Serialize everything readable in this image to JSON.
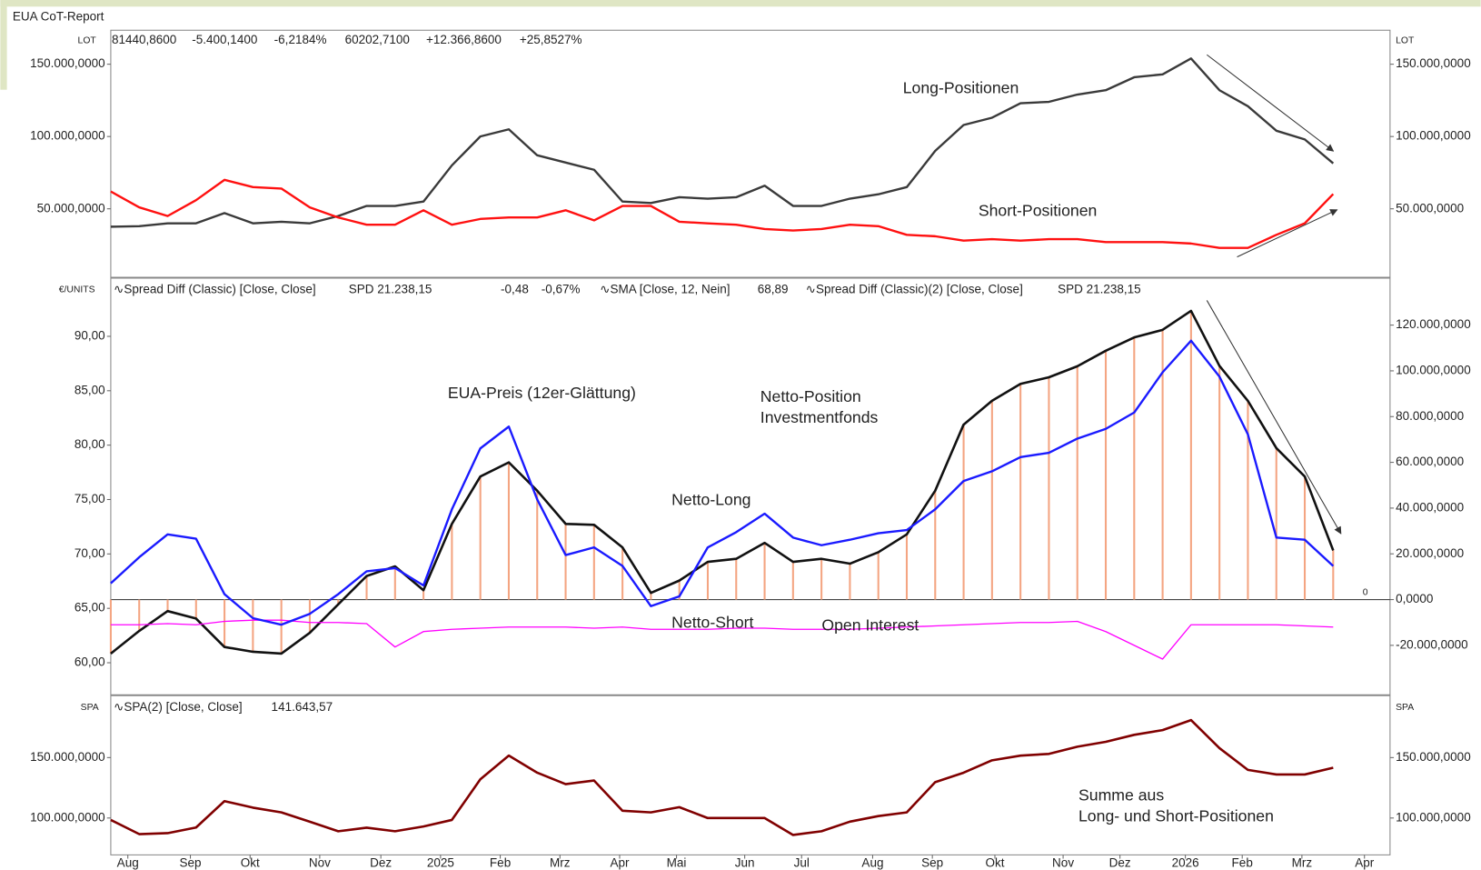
{
  "title": "EUA CoT-Report",
  "chart_data": [
    {
      "type": "line",
      "axis_label": "LOT",
      "header": [
        {
          "text": "81440,8600",
          "color": "#222222"
        },
        {
          "text": "-5.400,1400",
          "color": "#e02020"
        },
        {
          "text": "-6,2184%",
          "color": "#e02020"
        },
        {
          "text": "60202,7100",
          "color": "#e02020"
        },
        {
          "text": "+12.366,8600",
          "color": "#209020"
        },
        {
          "text": "+25,8527%",
          "color": "#209020"
        }
      ],
      "ylim": [
        3000,
        173500
      ],
      "yticks": [
        {
          "value": 50000,
          "label": "50.000,0000"
        },
        {
          "value": 100000,
          "label": "100.000,0000"
        },
        {
          "value": 150000,
          "label": "150.000,0000"
        }
      ],
      "series": [
        {
          "name": "Long-Positionen",
          "color": "#3a3a3a",
          "values": [
            37600,
            38000,
            40000,
            40000,
            47000,
            40000,
            41000,
            40000,
            45000,
            52000,
            52000,
            55000,
            80000,
            100000,
            105000,
            87000,
            82000,
            77000,
            55000,
            54000,
            58000,
            57000,
            58000,
            66000,
            52000,
            52000,
            57000,
            60000,
            65000,
            90000,
            108000,
            113000,
            123000,
            124000,
            129000,
            132000,
            141000,
            143000,
            154000,
            132000,
            121000,
            104000,
            98000,
            81441
          ]
        },
        {
          "name": "Short-Positionen",
          "color": "#ff1010",
          "values": [
            62000,
            51000,
            45000,
            56000,
            70000,
            65000,
            64000,
            51000,
            44000,
            39000,
            39000,
            49000,
            39000,
            43000,
            44000,
            44000,
            49000,
            42000,
            52000,
            52000,
            41000,
            40000,
            39000,
            36000,
            35000,
            36000,
            39000,
            38000,
            32000,
            31000,
            28000,
            29000,
            28000,
            29000,
            29000,
            27000,
            27000,
            27000,
            26000,
            23000,
            23000,
            32000,
            40000,
            60203
          ]
        }
      ]
    },
    {
      "type": "line",
      "axis_label": "€/UNITS",
      "header": [
        {
          "text": "∿Spread Diff (Classic)  [Close, Close]",
          "color": "#222222"
        },
        {
          "text": "SPD 21.238,15",
          "color": "#f4a070"
        },
        {
          "text": "-0,48",
          "color": "#e02020"
        },
        {
          "text": "-0,67%",
          "color": "#e02020"
        },
        {
          "text": "∿SMA  [Close, 12, Nein]",
          "color": "#222222"
        },
        {
          "text": "68,89",
          "color": "#1a1aff"
        },
        {
          "text": "∿Spread Diff (Classic)(2)  [Close, Close]",
          "color": "#222222"
        },
        {
          "text": "SPD 21.238,15",
          "color": "#222222"
        }
      ],
      "annotations": [
        "Netto-Position",
        "Investmentfonds",
        "Netto-Long",
        "Netto-Short",
        "0"
      ],
      "ylim": [
        57.1,
        95.3
      ],
      "yticks": [
        {
          "value": 60,
          "label": "60,00"
        },
        {
          "value": 65,
          "label": "65,00"
        },
        {
          "value": 70,
          "label": "70,00"
        },
        {
          "value": 75,
          "label": "75,00"
        },
        {
          "value": 80,
          "label": "80,00"
        },
        {
          "value": 85,
          "label": "85,00"
        },
        {
          "value": 90,
          "label": "90,00"
        }
      ],
      "y2lim": [
        -41400,
        140300
      ],
      "y2ticks": [
        {
          "value": -20000,
          "label": "-20.000,0000"
        },
        {
          "value": 0,
          "label": "0,0000"
        },
        {
          "value": 20000,
          "label": "20.000,0000"
        },
        {
          "value": 40000,
          "label": "40.000,0000"
        },
        {
          "value": 60000,
          "label": "60.000,0000"
        },
        {
          "value": 80000,
          "label": "80.000,0000"
        },
        {
          "value": 100000,
          "label": "100.000,0000"
        },
        {
          "value": 120000,
          "label": "120.000,0000"
        }
      ],
      "bar_color": "#f4a582",
      "series": [
        {
          "color": "#111111",
          "axis": "y2",
          "bars": true,
          "values": [
            -23600,
            -13700,
            -5000,
            -8300,
            -20700,
            -22800,
            -23600,
            -14500,
            -2100,
            10300,
            14500,
            4100,
            33100,
            53800,
            60000,
            47600,
            33100,
            32700,
            22800,
            2900,
            8300,
            16500,
            17800,
            24800,
            16500,
            17800,
            15700,
            20700,
            28500,
            47600,
            76500,
            86900,
            94300,
            97200,
            102000,
            108800,
            114600,
            117900,
            126200,
            102200,
            86900,
            66200,
            53800,
            21500
          ]
        },
        {
          "name": "Open Interest",
          "color": "#ff00ff",
          "axis": "y2",
          "values": [
            -11000,
            -11000,
            -10500,
            -11000,
            -9500,
            -9000,
            -9000,
            -10000,
            -10000,
            -10500,
            -20700,
            -14000,
            -13000,
            -12500,
            -12000,
            -12000,
            -12000,
            -12500,
            -12000,
            -13000,
            -13000,
            -13000,
            -12500,
            -12500,
            -13000,
            -13000,
            -13000,
            -12500,
            -12000,
            -11500,
            -11000,
            -10500,
            -10000,
            -10000,
            -9500,
            -14000,
            -20000,
            -26000,
            -11000,
            -11000,
            -11000,
            -11000,
            -11500,
            -12000
          ]
        },
        {
          "name": "EUA-Preis (12er-Glättung)",
          "color": "#1a1aff",
          "values": [
            67.3,
            69.7,
            71.8,
            71.4,
            66.3,
            64.1,
            63.5,
            64.5,
            66.3,
            68.4,
            68.7,
            67.1,
            74.1,
            79.7,
            81.7,
            75.0,
            69.9,
            70.6,
            68.9,
            65.2,
            66.1,
            70.6,
            72.0,
            73.7,
            71.5,
            70.8,
            71.3,
            71.9,
            72.2,
            74.1,
            76.7,
            77.6,
            78.9,
            79.3,
            80.6,
            81.5,
            83.0,
            86.7,
            89.6,
            86.3,
            81.0,
            71.5,
            71.3,
            68.89
          ]
        }
      ]
    },
    {
      "type": "line",
      "axis_label": "SPA",
      "header": [
        {
          "text": "∿SPA(2)  [Close, Close]",
          "color": "#222222"
        },
        {
          "text": "141.643,57",
          "color": "#8b1010"
        }
      ],
      "annotations": [
        "Summe aus",
        "Long- und Short-Positionen"
      ],
      "ylim": [
        69500,
        200000
      ],
      "yticks": [
        {
          "value": 100000,
          "label": "100.000,0000"
        },
        {
          "value": 150000,
          "label": "150.000,0000"
        }
      ],
      "xlim": [
        0,
        45
      ],
      "xticks": [
        {
          "value": 0.6,
          "label": "Aug"
        },
        {
          "value": 2.8,
          "label": "Sep"
        },
        {
          "value": 4.9,
          "label": "Okt"
        },
        {
          "value": 7.35,
          "label": "Nov"
        },
        {
          "value": 9.5,
          "label": "Dez"
        },
        {
          "value": 11.6,
          "label": "2025"
        },
        {
          "value": 13.7,
          "label": "Feb"
        },
        {
          "value": 15.8,
          "label": "Mrz"
        },
        {
          "value": 17.9,
          "label": "Apr"
        },
        {
          "value": 19.9,
          "label": "Mai"
        },
        {
          "value": 22.3,
          "label": "Jun"
        },
        {
          "value": 24.3,
          "label": "Jul"
        },
        {
          "value": 26.8,
          "label": "Aug"
        },
        {
          "value": 28.9,
          "label": "Sep"
        },
        {
          "value": 31.1,
          "label": "Okt"
        },
        {
          "value": 33.5,
          "label": "Nov"
        },
        {
          "value": 35.5,
          "label": "Dez"
        },
        {
          "value": 37.8,
          "label": "2026"
        },
        {
          "value": 39.8,
          "label": "Feb"
        },
        {
          "value": 41.9,
          "label": "Mrz"
        },
        {
          "value": 44.1,
          "label": "Apr"
        }
      ],
      "series": [
        {
          "color": "#800000",
          "values": [
            98400,
            86700,
            87500,
            92200,
            114000,
            108600,
            104700,
            96900,
            89000,
            92000,
            89000,
            93000,
            98400,
            132000,
            151600,
            137500,
            128000,
            131000,
            106000,
            104700,
            109000,
            100000,
            100000,
            100000,
            86000,
            89000,
            97000,
            101600,
            104700,
            129700,
            137500,
            147700,
            151600,
            153000,
            159000,
            163000,
            168800,
            172700,
            181000,
            157800,
            139800,
            136000,
            136000,
            141643
          ]
        }
      ]
    }
  ]
}
